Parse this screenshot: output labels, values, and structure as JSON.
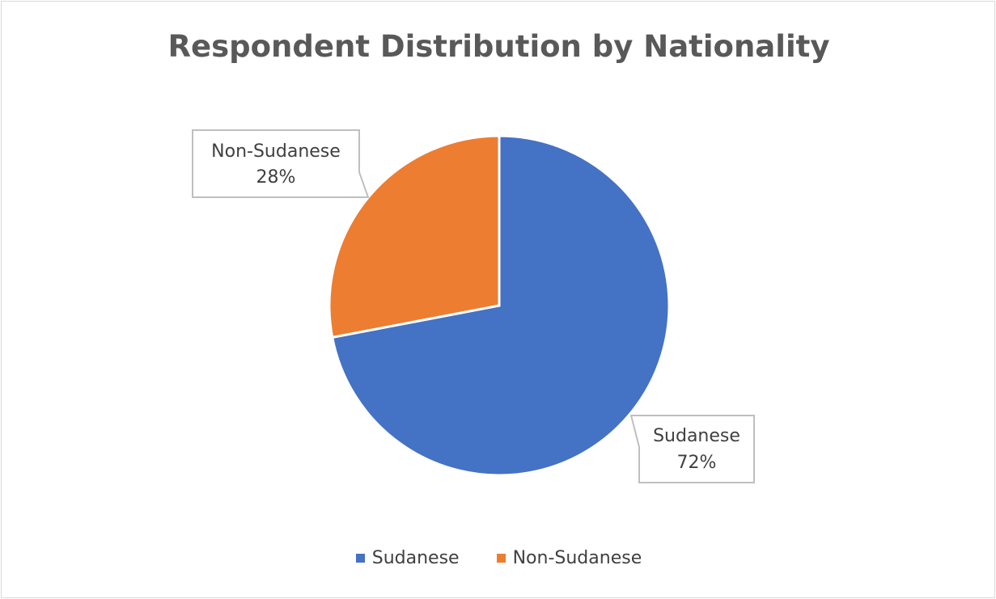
{
  "chart_data": {
    "type": "pie",
    "title": "Respondent Distribution by Nationality",
    "categories": [
      "Sudanese",
      "Non-Sudanese"
    ],
    "values": [
      72,
      28
    ],
    "data_labels": [
      "72%",
      "28%"
    ],
    "colors": [
      "#4472c4",
      "#ed7d31"
    ],
    "legend_position": "bottom"
  }
}
